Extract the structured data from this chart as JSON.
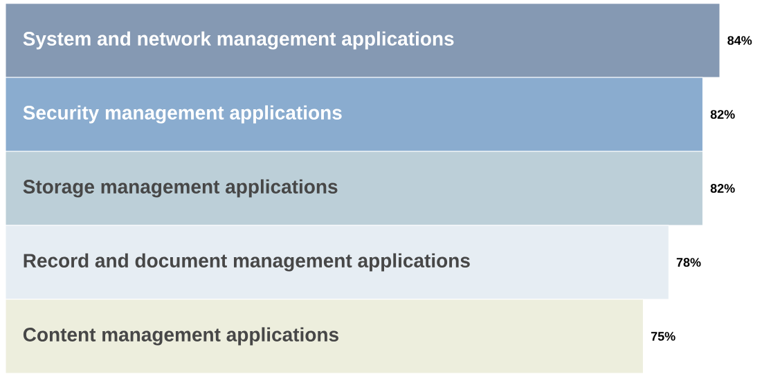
{
  "chart_data": {
    "type": "bar",
    "orientation": "horizontal",
    "categories": [
      "System and network management applications",
      "Security management applications",
      "Storage management applications",
      "Record and document management applications",
      "Content management applications"
    ],
    "values": [
      84,
      82,
      82,
      78,
      75
    ],
    "value_labels": [
      "84%",
      "82%",
      "82%",
      "78%",
      "75%"
    ],
    "colors": [
      "#8599b3",
      "#8aaccf",
      "#bccfd8",
      "#e6edf3",
      "#edeedd"
    ]
  }
}
